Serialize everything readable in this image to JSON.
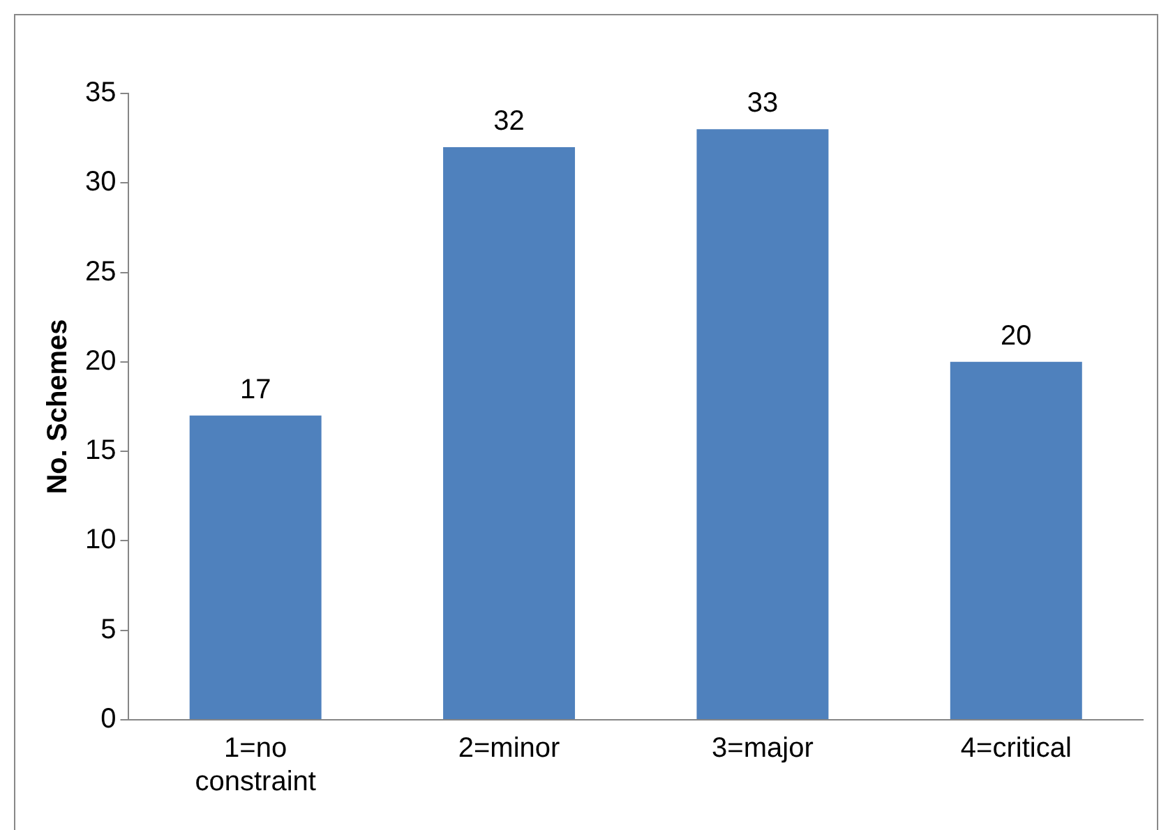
{
  "chart_data": {
    "type": "bar",
    "ylabel": "No. Schemes",
    "categories": [
      "1=no constraint",
      "2=minor",
      "3=major",
      "4=critical"
    ],
    "values": [
      17,
      32,
      33,
      20
    ],
    "color": "#4f81bd",
    "ylim": [
      0,
      35
    ],
    "yticks": [
      0,
      5,
      10,
      15,
      20,
      25,
      30,
      35
    ],
    "grid": false,
    "legend": false,
    "data_labels": true
  }
}
